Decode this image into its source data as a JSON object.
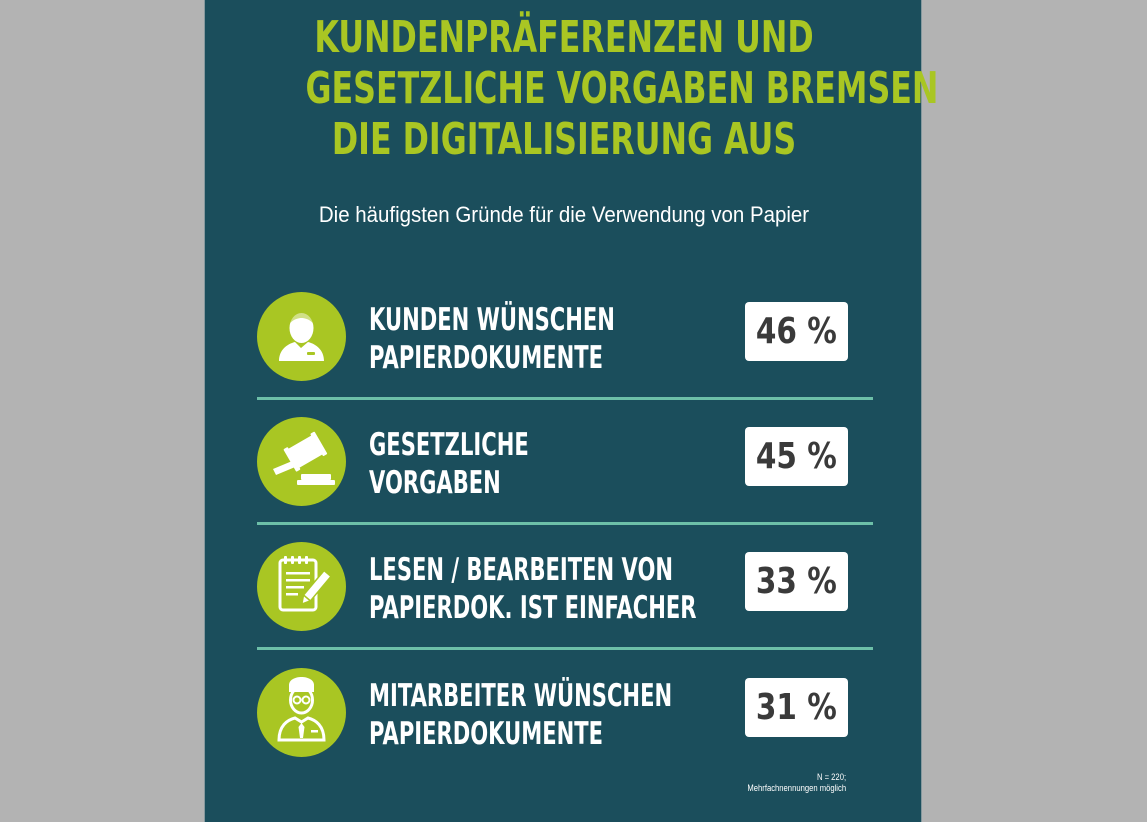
{
  "title_lines": [
    "KUNDENPRÄFERENZEN UND",
    "GESETZLICHE VORGABEN BREMSEN",
    "DIE DIGITALISIERUNG AUS"
  ],
  "subtitle": "Die häufigsten Gründe für die Verwendung von Papier",
  "colors": {
    "background_panel": "#1b4e5c",
    "accent_green": "#a9c623",
    "divider": "#6dbfa8",
    "outer_background": "#b3b3b3"
  },
  "items": [
    {
      "icon": "customer-icon",
      "label_line1": "KUNDEN WÜNSCHEN",
      "label_line2": "PAPIERDOKUMENTE",
      "value_text": "46 %"
    },
    {
      "icon": "gavel-icon",
      "label_line1": "GESETZLICHE",
      "label_line2": "VORGABEN",
      "value_text": "45 %"
    },
    {
      "icon": "notepad-pencil-icon",
      "label_line1": "LESEN / BEARBEITEN VON",
      "label_line2": "PAPIERDOK. IST EINFACHER",
      "value_text": "33 %"
    },
    {
      "icon": "employee-icon",
      "label_line1": "MITARBEITER WÜNSCHEN",
      "label_line2": "PAPIERDOKUMENTE",
      "value_text": "31 %"
    }
  ],
  "footnote_line1": "N = 220;",
  "footnote_line2": "Mehrfachnennungen möglich",
  "chart_data": {
    "type": "table",
    "title": "KUNDENPRÄFERENZEN UND GESETZLICHE VORGABEN BREMSEN DIE DIGITALISIERUNG AUS",
    "subtitle": "Die häufigsten Gründe für die Verwendung von Papier",
    "categories": [
      "KUNDEN WÜNSCHEN PAPIERDOKUMENTE",
      "GESETZLICHE VORGABEN",
      "LESEN / BEARBEITEN VON PAPIERDOK. IST EINFACHER",
      "MITARBEITER WÜNSCHEN PAPIERDOKUMENTE"
    ],
    "values": [
      46,
      45,
      33,
      31
    ],
    "unit": "%",
    "annotations": [
      "N = 220;",
      "Mehrfachnennungen möglich"
    ]
  }
}
